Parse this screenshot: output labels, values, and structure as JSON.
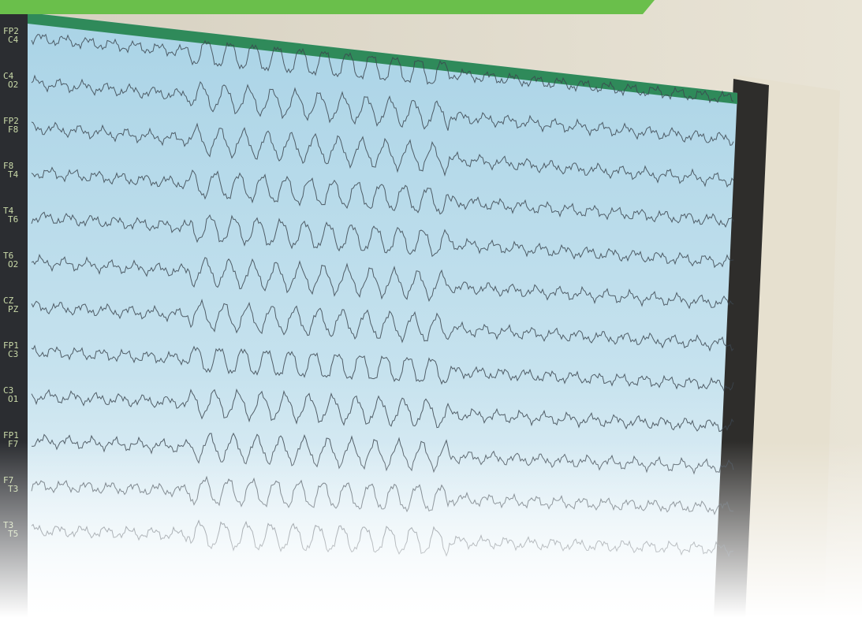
{
  "channels": [
    {
      "top": "FP2",
      "bottom": "C4"
    },
    {
      "top": "C4",
      "bottom": "O2"
    },
    {
      "top": "FP2",
      "bottom": "F8"
    },
    {
      "top": "F8",
      "bottom": "T4"
    },
    {
      "top": "T4",
      "bottom": "T6"
    },
    {
      "top": "T6",
      "bottom": "O2"
    },
    {
      "top": "CZ",
      "bottom": "PZ"
    },
    {
      "top": "FP1",
      "bottom": "C3"
    },
    {
      "top": "C3",
      "bottom": "O1"
    },
    {
      "top": "FP1",
      "bottom": "F7"
    },
    {
      "top": "F7",
      "bottom": "T3"
    },
    {
      "top": "T3",
      "bottom": "T5"
    }
  ]
}
